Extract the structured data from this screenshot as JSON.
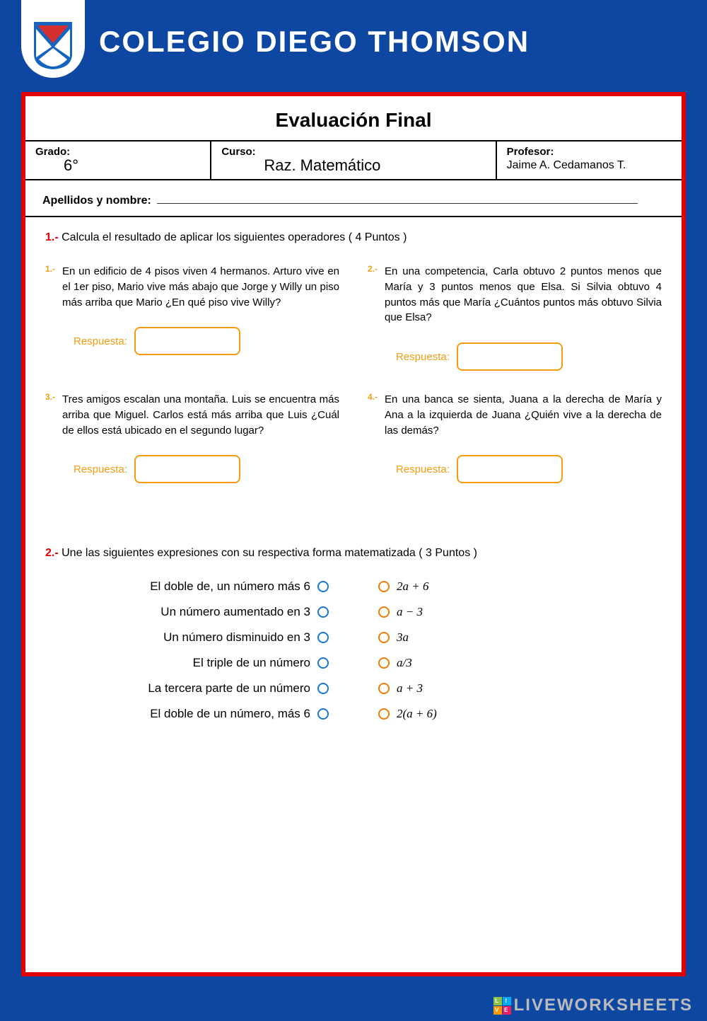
{
  "header": {
    "school_name": "COLEGIO DIEGO THOMSON",
    "logo_colors": {
      "red": "#d32f2f",
      "blue": "#1565c0",
      "white": "#ffffff"
    }
  },
  "sheet": {
    "title": "Evaluación Final",
    "grade_label": "Grado:",
    "grade_value": "6°",
    "course_label": "Curso:",
    "course_value": "Raz. Matemático",
    "teacher_label": "Profesor:",
    "teacher_value": "Jaime A. Cedamanos T.",
    "name_label": "Apellidos y nombre:"
  },
  "q1": {
    "num": "1.-",
    "text": " Calcula el resultado de aplicar los siguientes operadores ( 4 Puntos )",
    "problems": [
      {
        "n": "1.-",
        "text": "En un edificio de 4 pisos viven 4 hermanos. Arturo vive en el 1er piso, Mario vive más abajo que Jorge y Willy un piso más arriba que Mario ¿En qué piso vive Willy?"
      },
      {
        "n": "2.-",
        "text": "En una competencia, Carla obtuvo 2 puntos menos que María y 3 puntos menos que Elsa. Si Silvia obtuvo 4 puntos más que María ¿Cuántos puntos más obtuvo Silvia que Elsa?"
      },
      {
        "n": "3.-",
        "text": "Tres amigos escalan una montaña. Luis se encuentra más arriba que Miguel. Carlos está más arriba que Luis ¿Cuál de ellos está ubicado en el segundo lugar?"
      },
      {
        "n": "4.-",
        "text": "En una banca se sienta, Juana a la derecha de María y Ana a la izquierda de Juana ¿Quién vive a la derecha de las demás?"
      }
    ],
    "respuesta_label": "Respuesta:"
  },
  "q2": {
    "num": "2.-",
    "text": " Une las siguientes expresiones con su respectiva forma matematizada ( 3 Puntos )",
    "left": [
      "El doble de, un número más 6",
      "Un número aumentado en 3",
      "Un número disminuido en 3",
      "El triple de un número",
      "La tercera parte de un número",
      "El doble de un número, más 6"
    ],
    "right": [
      "2a + 6",
      "a − 3",
      "3a",
      "a/3",
      "a + 3",
      "2(a + 6)"
    ]
  },
  "watermark": {
    "text": "LIVEWORKSHEETS",
    "logo_colors": [
      "#8bc34a",
      "#03a9f4",
      "#ff9800",
      "#e91e63"
    ],
    "logo_letters": [
      "L",
      "I",
      "V",
      "E"
    ]
  },
  "colors": {
    "page_bg": "#0d47a1",
    "border_red": "#e20000",
    "accent_orange": "#f39c12",
    "circle_blue": "#1976d2",
    "circle_orange": "#f57c00"
  }
}
